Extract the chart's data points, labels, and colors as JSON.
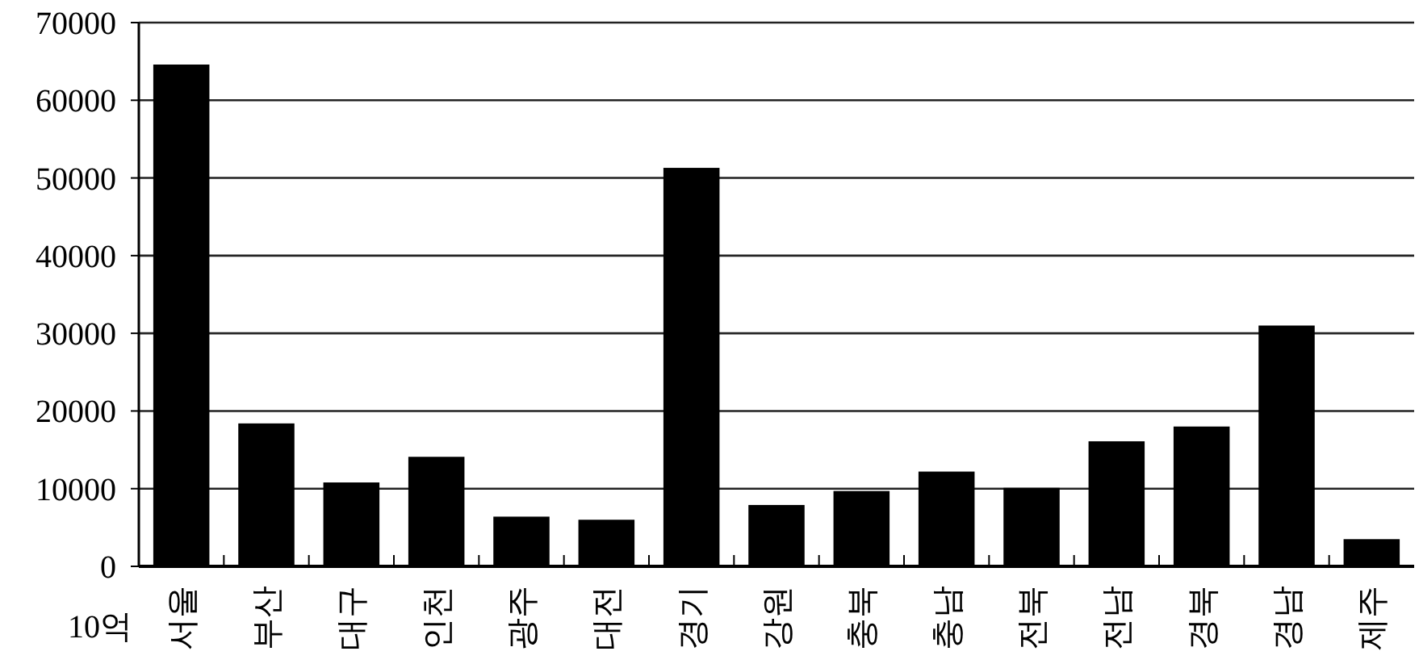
{
  "chart_data": {
    "type": "bar",
    "ylabel": "10억",
    "categories": [
      "서울",
      "부산",
      "대구",
      "인천",
      "광주",
      "대전",
      "경기",
      "강원",
      "충북",
      "충남",
      "전북",
      "전남",
      "경북",
      "경남",
      "제주"
    ],
    "values": [
      64600,
      18400,
      10800,
      14100,
      6400,
      6000,
      51300,
      7900,
      9700,
      12200,
      10100,
      16100,
      18000,
      31000,
      3500
    ],
    "color": "#000000",
    "ylim": [
      0,
      70000
    ],
    "yticks": [
      0,
      10000,
      20000,
      30000,
      40000,
      50000,
      60000,
      70000
    ],
    "grid": "y"
  }
}
